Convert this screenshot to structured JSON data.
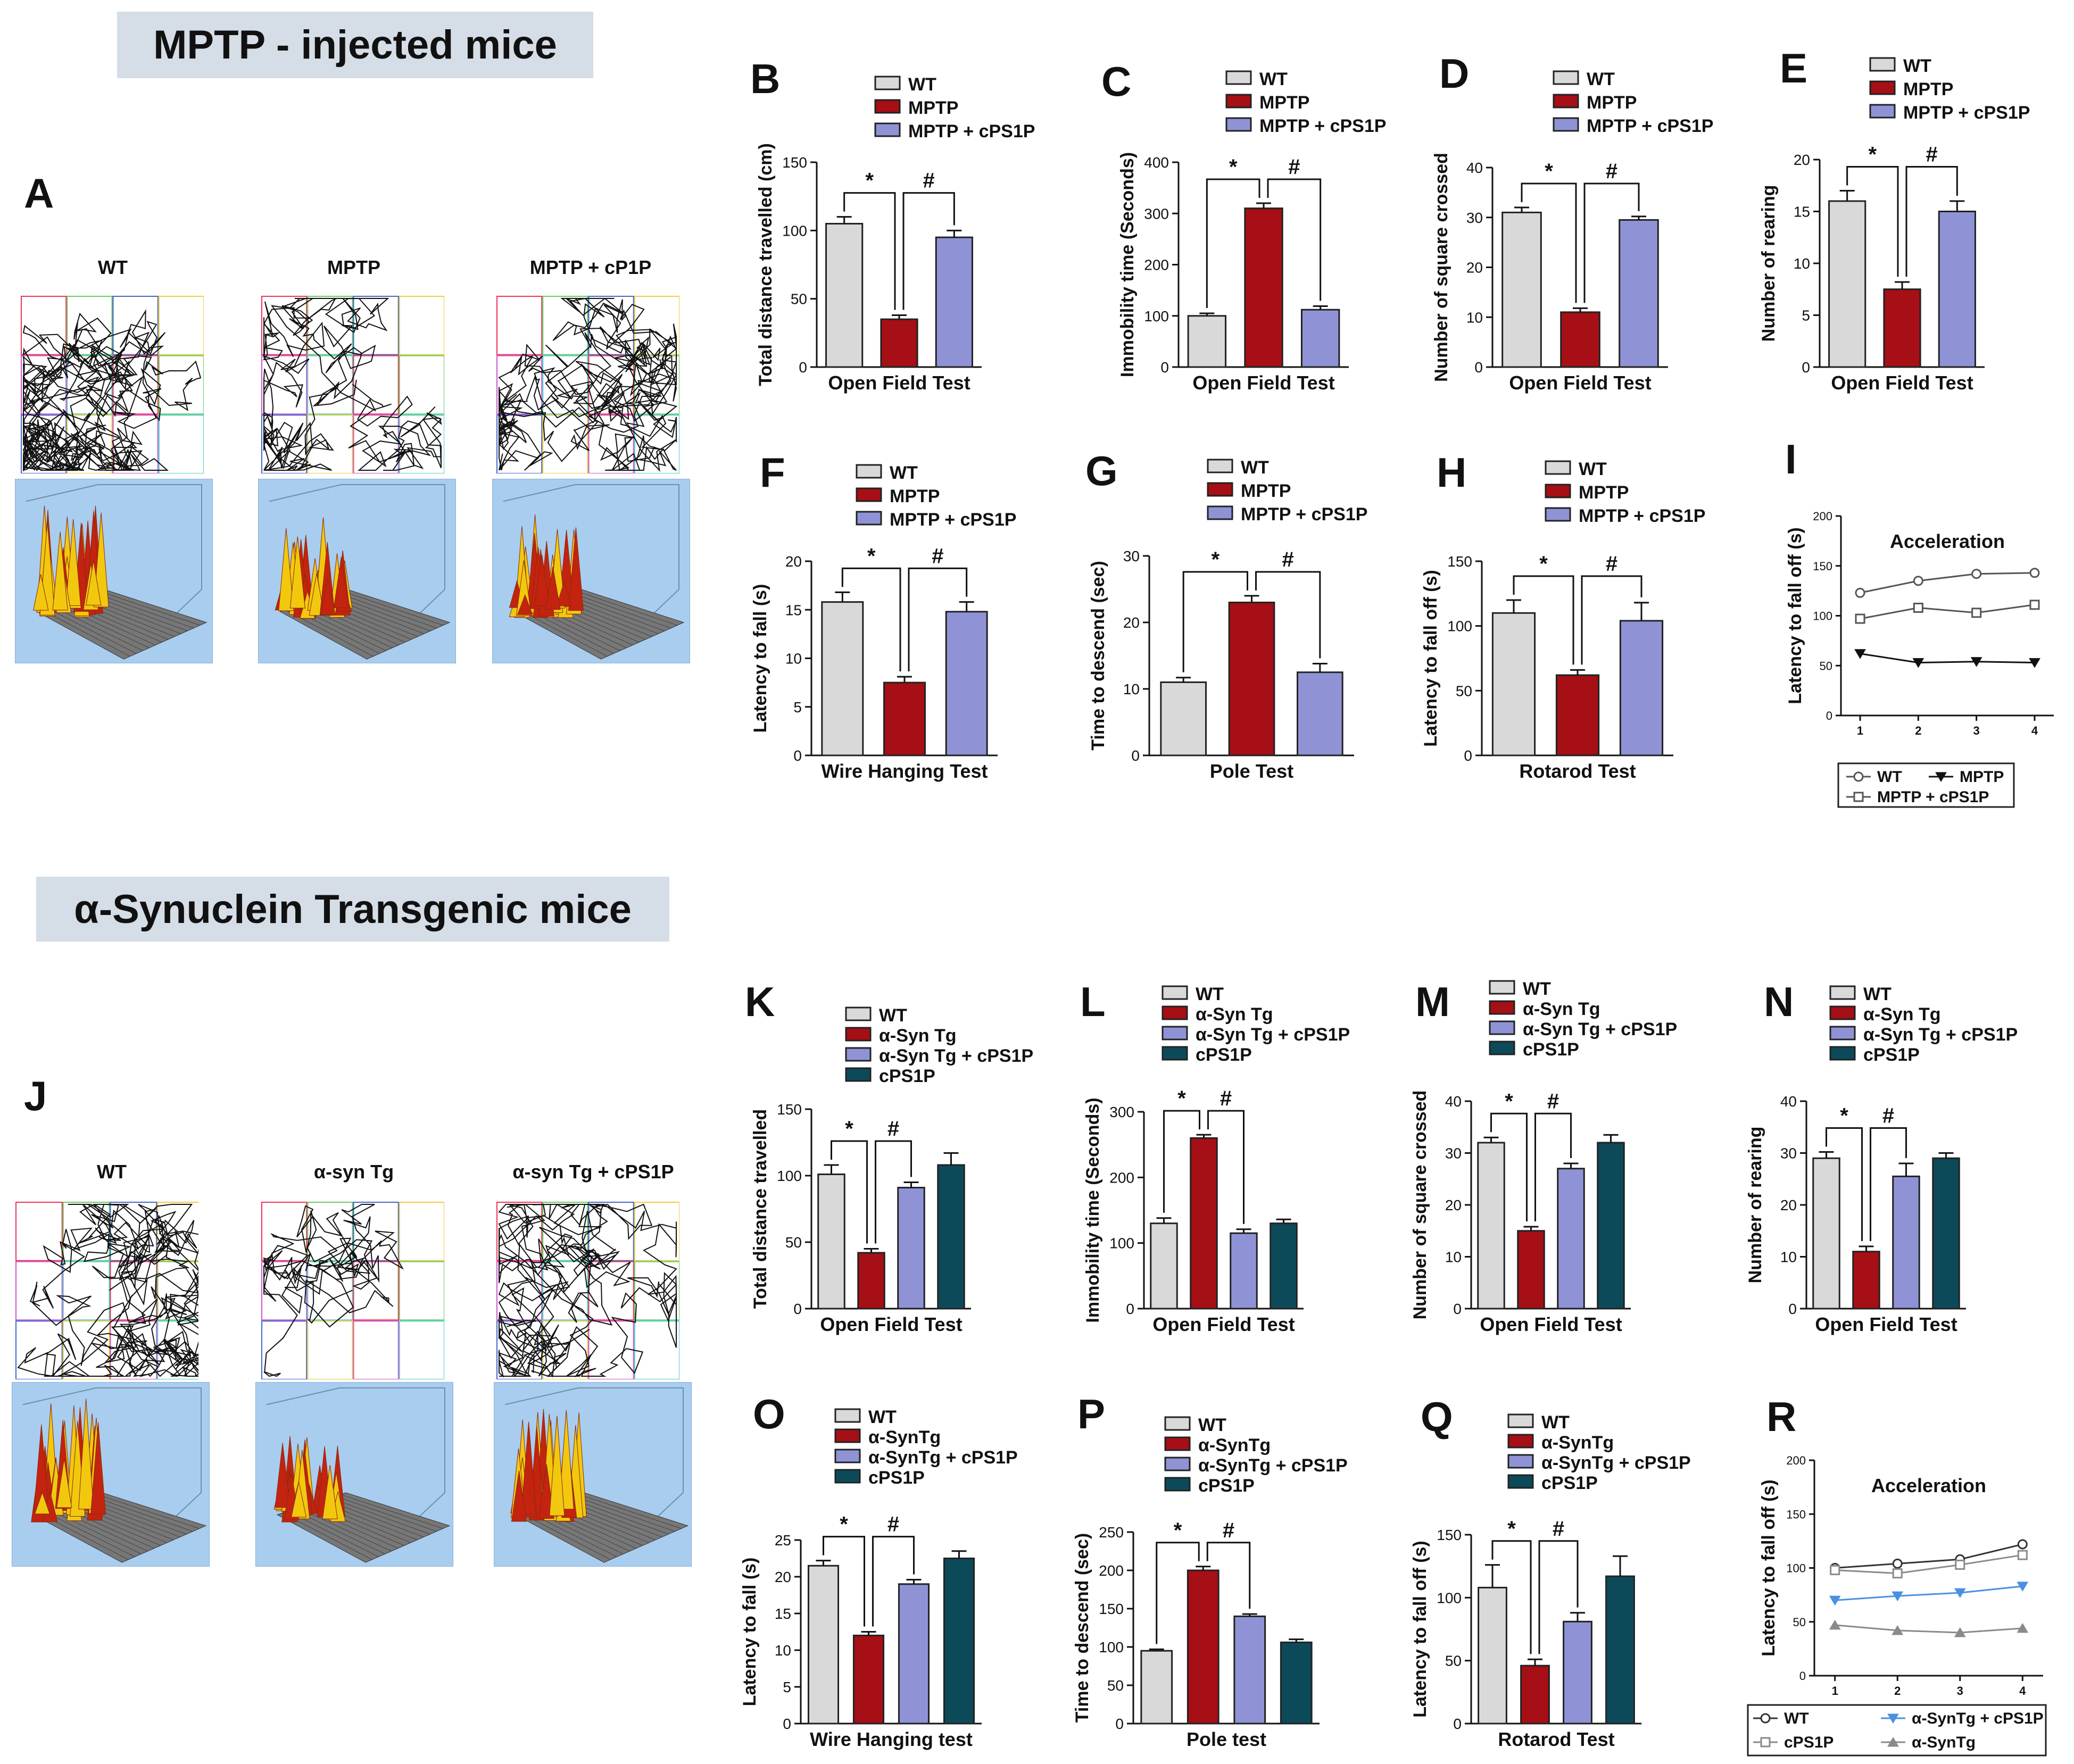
{
  "figure": {
    "banner_top": "MPTP - injected mice",
    "banner_bottom": "α-Synuclein Transgenic mice",
    "panel_A_label": "A",
    "panel_J_label": "J",
    "trajectory_titles_top": [
      "WT",
      "MPTP",
      "MPTP + cP1P"
    ],
    "trajectory_titles_bottom": [
      "WT",
      "α-syn  Tg",
      "α-syn  Tg + cPS1P"
    ]
  },
  "colors": {
    "wt": "#d9d9d9",
    "mptp": "#a50f15",
    "treat": "#8f93d6",
    "cps1p": "#0c4a5a",
    "blue_line": "#4a90e2",
    "grey_line": "#8a8a8a"
  },
  "chart_data": [
    {
      "id": "B",
      "type": "bar",
      "letter": "B",
      "xlabel": "Open Field Test",
      "ylabel": "Total distance travelled (cm)",
      "ylim": [
        0,
        150
      ],
      "ticks": [
        0,
        50,
        100,
        150
      ],
      "series": [
        {
          "name": "WT",
          "value": 105,
          "err": 5
        },
        {
          "name": "MPTP",
          "value": 35,
          "err": 3
        },
        {
          "name": "MPTP + cPS1P",
          "value": 95,
          "err": 5
        }
      ],
      "legend": [
        "WT",
        "MPTP",
        "MPTP + cPS1P"
      ],
      "annotations": [
        "*",
        "#"
      ]
    },
    {
      "id": "C",
      "type": "bar",
      "letter": "C",
      "xlabel": "Open Field Test",
      "ylabel": "Immobility time (Seconds)",
      "ylim": [
        0,
        400
      ],
      "ticks": [
        0,
        100,
        200,
        300,
        400
      ],
      "series": [
        {
          "name": "WT",
          "value": 100,
          "err": 5
        },
        {
          "name": "MPTP",
          "value": 310,
          "err": 10
        },
        {
          "name": "MPTP + cPS1P",
          "value": 112,
          "err": 7
        }
      ],
      "legend": [
        "WT",
        "MPTP",
        "MPTP + cPS1P"
      ],
      "annotations": [
        "*",
        "#"
      ]
    },
    {
      "id": "D",
      "type": "bar",
      "letter": "D",
      "xlabel": "Open Field Test",
      "ylabel": "Number of square crossed",
      "ylim": [
        0,
        40
      ],
      "ticks": [
        0,
        10,
        20,
        30,
        40
      ],
      "series": [
        {
          "name": "WT",
          "value": 31,
          "err": 1
        },
        {
          "name": "MPTP",
          "value": 11,
          "err": 0.8
        },
        {
          "name": "MPTP + cPS1P",
          "value": 29.5,
          "err": 0.7
        }
      ],
      "legend": [
        "WT",
        "MPTP",
        "MPTP + cPS1P"
      ],
      "annotations": [
        "*",
        "#"
      ]
    },
    {
      "id": "E",
      "type": "bar",
      "letter": "E",
      "xlabel": "Open Field Test",
      "ylabel": "Number of rearing",
      "ylim": [
        0,
        20
      ],
      "ticks": [
        0,
        5,
        10,
        15,
        20
      ],
      "series": [
        {
          "name": "WT",
          "value": 16,
          "err": 1
        },
        {
          "name": "MPTP",
          "value": 7.5,
          "err": 0.7
        },
        {
          "name": "MPTP + cPS1P",
          "value": 15,
          "err": 1
        }
      ],
      "legend": [
        "WT",
        "MPTP",
        "MPTP + cPS1P"
      ],
      "annotations": [
        "*",
        "#"
      ]
    },
    {
      "id": "F",
      "type": "bar",
      "letter": "F",
      "xlabel": "Wire Hanging Test",
      "ylabel": "Latency to fall (s)",
      "ylim": [
        0,
        20
      ],
      "ticks": [
        0,
        5,
        10,
        15,
        20
      ],
      "series": [
        {
          "name": "WT",
          "value": 15.8,
          "err": 1
        },
        {
          "name": "MPTP",
          "value": 7.5,
          "err": 0.6
        },
        {
          "name": "MPTP + cPS1P",
          "value": 14.8,
          "err": 1
        }
      ],
      "legend": [
        "WT",
        "MPTP",
        "MPTP + cPS1P"
      ],
      "annotations": [
        "*",
        "#"
      ]
    },
    {
      "id": "G",
      "type": "bar",
      "letter": "G",
      "xlabel": "Pole Test",
      "ylabel": "Time to descend (sec)",
      "ylim": [
        0,
        30
      ],
      "ticks": [
        0,
        10,
        20,
        30
      ],
      "series": [
        {
          "name": "WT",
          "value": 11,
          "err": 0.7
        },
        {
          "name": "MPTP",
          "value": 23,
          "err": 1
        },
        {
          "name": "MPTP + cPS1P",
          "value": 12.5,
          "err": 1.3
        }
      ],
      "legend": [
        "WT",
        "MPTP",
        "MPTP + cPS1P"
      ],
      "annotations": [
        "*",
        "#"
      ]
    },
    {
      "id": "H",
      "type": "bar",
      "letter": "H",
      "xlabel": "Rotarod Test",
      "ylabel": "Latency to fall off (s)",
      "ylim": [
        0,
        150
      ],
      "ticks": [
        0,
        50,
        100,
        150
      ],
      "series": [
        {
          "name": "WT",
          "value": 110,
          "err": 10
        },
        {
          "name": "MPTP",
          "value": 62,
          "err": 4
        },
        {
          "name": "MPTP + cPS1P",
          "value": 104,
          "err": 14
        }
      ],
      "legend": [
        "WT",
        "MPTP",
        "MPTP + cPS1P"
      ],
      "annotations": [
        "*",
        "#"
      ]
    },
    {
      "id": "I",
      "type": "line",
      "letter": "I",
      "title": "Acceleration",
      "xlabel": "",
      "ylabel": "Latency to fall off (s)",
      "ylim": [
        0,
        200
      ],
      "ticks": [
        0,
        50,
        100,
        150,
        200
      ],
      "x": [
        1,
        2,
        3,
        4
      ],
      "series": [
        {
          "name": "WT",
          "values": [
            123,
            135,
            142,
            143
          ],
          "marker": "circle",
          "color": "#555555"
        },
        {
          "name": "MPTP",
          "values": [
            62,
            53,
            54,
            53
          ],
          "marker": "tri",
          "color": "#111111"
        },
        {
          "name": "MPTP + cPS1P",
          "values": [
            97,
            108,
            103,
            111
          ],
          "marker": "square",
          "color": "#555555"
        }
      ],
      "legend": [
        "WT",
        "MPTP",
        "MPTP + cPS1P"
      ]
    },
    {
      "id": "K",
      "type": "bar",
      "letter": "K",
      "xlabel": "Open Field Test",
      "ylabel": "Total distance travelled",
      "ylim": [
        0,
        150
      ],
      "ticks": [
        0,
        50,
        100,
        150
      ],
      "series": [
        {
          "name": "WT",
          "value": 101,
          "err": 7
        },
        {
          "name": "α-Syn Tg",
          "value": 42,
          "err": 3
        },
        {
          "name": "α-Syn Tg + cPS1P",
          "value": 91,
          "err": 4
        },
        {
          "name": "cPS1P",
          "value": 108,
          "err": 9
        }
      ],
      "legend": [
        "WT",
        "α-Syn Tg",
        "α-Syn Tg + cPS1P",
        "cPS1P"
      ],
      "annotations": [
        "*",
        "#"
      ]
    },
    {
      "id": "L",
      "type": "bar",
      "letter": "L",
      "xlabel": "Open Field Test",
      "ylabel": "Immobility time (Seconds)",
      "ylim": [
        0,
        300
      ],
      "ticks": [
        0,
        100,
        200,
        300
      ],
      "series": [
        {
          "name": "WT",
          "value": 130,
          "err": 8
        },
        {
          "name": "α-Syn Tg",
          "value": 260,
          "err": 5
        },
        {
          "name": "α-Syn Tg + cPS1P",
          "value": 115,
          "err": 6
        },
        {
          "name": "cPS1P",
          "value": 130,
          "err": 6
        }
      ],
      "legend": [
        "WT",
        "α-Syn Tg",
        "α-Syn Tg + cPS1P",
        "cPS1P"
      ],
      "annotations": [
        "*",
        "#"
      ]
    },
    {
      "id": "M",
      "type": "bar",
      "letter": "M",
      "xlabel": "Open Field Test",
      "ylabel": "Number of square crossed",
      "ylim": [
        0,
        40
      ],
      "ticks": [
        0,
        10,
        20,
        30,
        40
      ],
      "series": [
        {
          "name": "WT",
          "value": 32,
          "err": 1
        },
        {
          "name": "α-Syn Tg",
          "value": 15,
          "err": 0.8
        },
        {
          "name": "α-Syn Tg + cPS1P",
          "value": 27,
          "err": 1
        },
        {
          "name": "cPS1P",
          "value": 32,
          "err": 1.5
        }
      ],
      "legend": [
        "WT",
        "α-Syn Tg",
        "α-Syn Tg + cPS1P",
        "cPS1P"
      ],
      "annotations": [
        "*",
        "#"
      ]
    },
    {
      "id": "N",
      "type": "bar",
      "letter": "N",
      "xlabel": "Open Field Test",
      "ylabel": "Number of rearing",
      "ylim": [
        0,
        40
      ],
      "ticks": [
        0,
        10,
        20,
        30,
        40
      ],
      "series": [
        {
          "name": "WT",
          "value": 29,
          "err": 1.2
        },
        {
          "name": "α-Syn Tg",
          "value": 11,
          "err": 1
        },
        {
          "name": "α-Syn Tg + cPS1P",
          "value": 25.5,
          "err": 2.5
        },
        {
          "name": "cPS1P",
          "value": 29,
          "err": 1
        }
      ],
      "legend": [
        "WT",
        "α-Syn Tg",
        "α-Syn Tg + cPS1P",
        "cPS1P"
      ],
      "annotations": [
        "*",
        "#"
      ]
    },
    {
      "id": "O",
      "type": "bar",
      "letter": "O",
      "xlabel": "Wire Hanging test",
      "ylabel": "Latency to fall (s)",
      "ylim": [
        0,
        25
      ],
      "ticks": [
        0,
        5,
        10,
        15,
        20,
        25
      ],
      "series": [
        {
          "name": "WT",
          "value": 21.5,
          "err": 0.7
        },
        {
          "name": "α-SynTg",
          "value": 12,
          "err": 0.5
        },
        {
          "name": "α-SynTg + cPS1P",
          "value": 19,
          "err": 0.6
        },
        {
          "name": "cPS1P",
          "value": 22.5,
          "err": 1
        }
      ],
      "legend": [
        "WT",
        "α-SynTg",
        "α-SynTg + cPS1P",
        "cPS1P"
      ],
      "annotations": [
        "*",
        "#"
      ]
    },
    {
      "id": "P",
      "type": "bar",
      "letter": "P",
      "xlabel": "Pole test",
      "ylabel": "Time to descend (sec)",
      "ylim": [
        0,
        250
      ],
      "ticks": [
        0,
        50,
        100,
        150,
        200,
        250
      ],
      "series": [
        {
          "name": "WT",
          "value": 95,
          "err": 2
        },
        {
          "name": "α-SynTg",
          "value": 200,
          "err": 5
        },
        {
          "name": "α-SynTg + cPS1P",
          "value": 140,
          "err": 3
        },
        {
          "name": "cPS1P",
          "value": 106,
          "err": 4
        }
      ],
      "legend": [
        "WT",
        "α-SynTg",
        "α-SynTg + cPS1P",
        "cPS1P"
      ],
      "annotations": [
        "*",
        "#"
      ]
    },
    {
      "id": "Q",
      "type": "bar",
      "letter": "Q",
      "xlabel": "Rotarod Test",
      "ylabel": "Latency to fall off (s)",
      "ylim": [
        0,
        150
      ],
      "ticks": [
        0,
        50,
        100,
        150
      ],
      "series": [
        {
          "name": "WT",
          "value": 108,
          "err": 18
        },
        {
          "name": "α-SynTg",
          "value": 46,
          "err": 5
        },
        {
          "name": "α-SynTg + cPS1P",
          "value": 81,
          "err": 7
        },
        {
          "name": "cPS1P",
          "value": 117,
          "err": 16
        }
      ],
      "legend": [
        "WT",
        "α-SynTg",
        "α-SynTg + cPS1P",
        "cPS1P"
      ],
      "annotations": [
        "*",
        "#"
      ]
    },
    {
      "id": "R",
      "type": "line",
      "letter": "R",
      "title": "Acceleration",
      "xlabel": "",
      "ylabel": "Latency to fall off (s)",
      "ylim": [
        0,
        200
      ],
      "ticks": [
        0,
        50,
        100,
        150,
        200
      ],
      "x": [
        1,
        2,
        3,
        4
      ],
      "series": [
        {
          "name": "WT",
          "values": [
            100,
            104,
            108,
            122
          ],
          "marker": "circle",
          "color": "#333333"
        },
        {
          "name": "cPS1P",
          "values": [
            98,
            95,
            103,
            112
          ],
          "marker": "square",
          "color": "#8a8a8a"
        },
        {
          "name": "α-SynTg + cPS1P",
          "values": [
            70,
            74,
            77,
            83
          ],
          "marker": "tri",
          "color": "#4a90e2"
        },
        {
          "name": "α-SynTg",
          "values": [
            47,
            42,
            40,
            44
          ],
          "marker": "tri-up",
          "color": "#8a8a8a"
        }
      ],
      "legend": [
        "WT",
        "cPS1P",
        "α-SynTg + cPS1P",
        "α-SynTg"
      ]
    }
  ]
}
